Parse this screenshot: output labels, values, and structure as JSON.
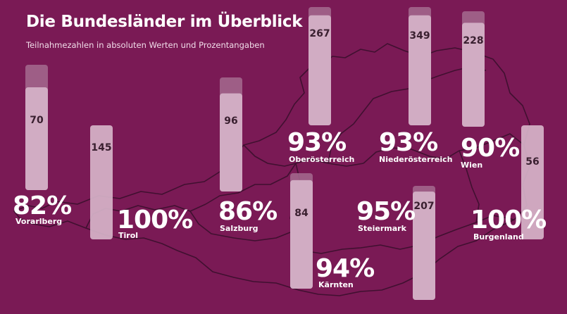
{
  "header": {
    "title": "Die Bundesländer im Überblick",
    "subtitle": "Teilnahmezahlen in absoluten Werten und Prozentangaben"
  },
  "colors": {
    "background": "#7a1a55",
    "bar": "#d6b3c9",
    "bar_cap": "#a56b8f",
    "text": "#ffffff",
    "value_text": "#3a2030",
    "map_line": "#3a0f2c"
  },
  "chart_data": {
    "type": "bar",
    "title": "Die Bundesländer im Überblick",
    "subtitle": "Teilnahmezahlen in absoluten Werten und Prozentangaben",
    "categories": [
      "Vorarlberg",
      "Tirol",
      "Salzburg",
      "Kärnten",
      "Oberösterreich",
      "Niederösterreich",
      "Wien",
      "Steiermark",
      "Burgenland"
    ],
    "series": [
      {
        "values": [
          70,
          145,
          96,
          84,
          267,
          349,
          228,
          207,
          56
        ]
      },
      {
        "values": [
          82,
          100,
          86,
          94,
          93,
          93,
          90,
          95,
          100
        ]
      }
    ],
    "value_labels": [
      "70",
      "145",
      "96",
      "84",
      "267",
      "349",
      "228",
      "207",
      "56"
    ],
    "percent_labels": [
      "82%",
      "100%",
      "86%",
      "94%",
      "93%",
      "93%",
      "90%",
      "95%",
      "100%"
    ],
    "background_image": "austria-map"
  }
}
